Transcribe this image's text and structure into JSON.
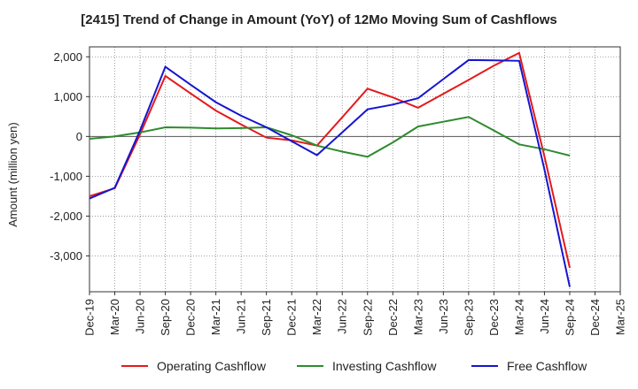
{
  "chart_data": {
    "type": "line",
    "title": "[2415]  Trend of Change in Amount (YoY) of 12Mo Moving Sum of Cashflows",
    "ylabel": "Amount (million yen)",
    "xlabel": "",
    "ylim": [
      -3900,
      2250
    ],
    "yticks": [
      2000,
      1000,
      0,
      -1000,
      -2000,
      -3000
    ],
    "ytick_labels": [
      "2,000",
      "1,000",
      "0",
      "-1,000",
      "-2,000",
      "-3,000"
    ],
    "categories": [
      "Dec-19",
      "Mar-20",
      "Jun-20",
      "Sep-20",
      "Dec-20",
      "Mar-21",
      "Jun-21",
      "Sep-21",
      "Dec-21",
      "Mar-22",
      "Jun-22",
      "Sep-22",
      "Dec-22",
      "Mar-23",
      "Jun-23",
      "Sep-23",
      "Dec-23",
      "Mar-24",
      "Jun-24",
      "Sep-24",
      "Dec-24",
      "Mar-25"
    ],
    "grid": true,
    "legend_position": "bottom",
    "series": [
      {
        "name": "Operating Cashflow",
        "color": "#e31a1c",
        "values": [
          -1500,
          -1300,
          50,
          1520,
          1080,
          650,
          300,
          -30,
          -100,
          -230,
          480,
          1200,
          980,
          720,
          1070,
          1420,
          1780,
          2100,
          -500,
          -3300,
          null,
          null
        ]
      },
      {
        "name": "Investing Cashflow",
        "color": "#2e8b2e",
        "values": [
          -60,
          0,
          100,
          230,
          220,
          200,
          210,
          230,
          30,
          -230,
          -380,
          -510,
          -150,
          250,
          370,
          490,
          150,
          -200,
          -320,
          -480,
          null,
          null
        ]
      },
      {
        "name": "Free Cashflow",
        "color": "#1515d0",
        "values": [
          -1560,
          -1290,
          150,
          1750,
          1300,
          860,
          520,
          230,
          -120,
          -470,
          100,
          680,
          800,
          960,
          1440,
          1920,
          1910,
          1900,
          -830,
          -3780,
          null,
          null
        ]
      }
    ]
  }
}
